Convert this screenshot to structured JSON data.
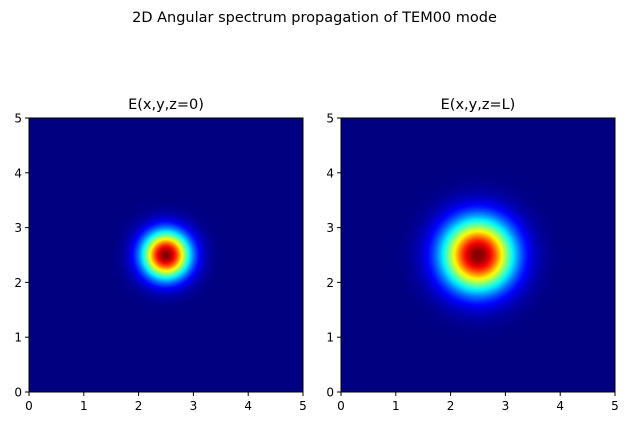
{
  "suptitle": "2D Angular spectrum propagation of TEM00 mode",
  "colormap": "jet",
  "chart_data": [
    {
      "type": "heatmap",
      "title": "E(x,y,z=0)",
      "xlabel": "",
      "ylabel": "",
      "xlim": [
        0,
        5
      ],
      "ylim": [
        0,
        5
      ],
      "xticks": [
        "0",
        "1",
        "2",
        "3",
        "4",
        "5"
      ],
      "yticks": [
        "0",
        "1",
        "2",
        "3",
        "4",
        "5"
      ],
      "field": {
        "shape": "gaussian",
        "center": [
          2.5,
          2.5
        ],
        "radius_1e2": 0.6,
        "peak": 1.0
      }
    },
    {
      "type": "heatmap",
      "title": "E(x,y,z=L)",
      "xlabel": "",
      "ylabel": "",
      "xlim": [
        0,
        5
      ],
      "ylim": [
        0,
        5
      ],
      "xticks": [
        "0",
        "1",
        "2",
        "3",
        "4",
        "5"
      ],
      "yticks": [
        "0",
        "1",
        "2",
        "3",
        "4",
        "5"
      ],
      "field": {
        "shape": "gaussian",
        "center": [
          2.5,
          2.5
        ],
        "radius_1e2": 0.9,
        "peak": 1.0
      }
    }
  ]
}
